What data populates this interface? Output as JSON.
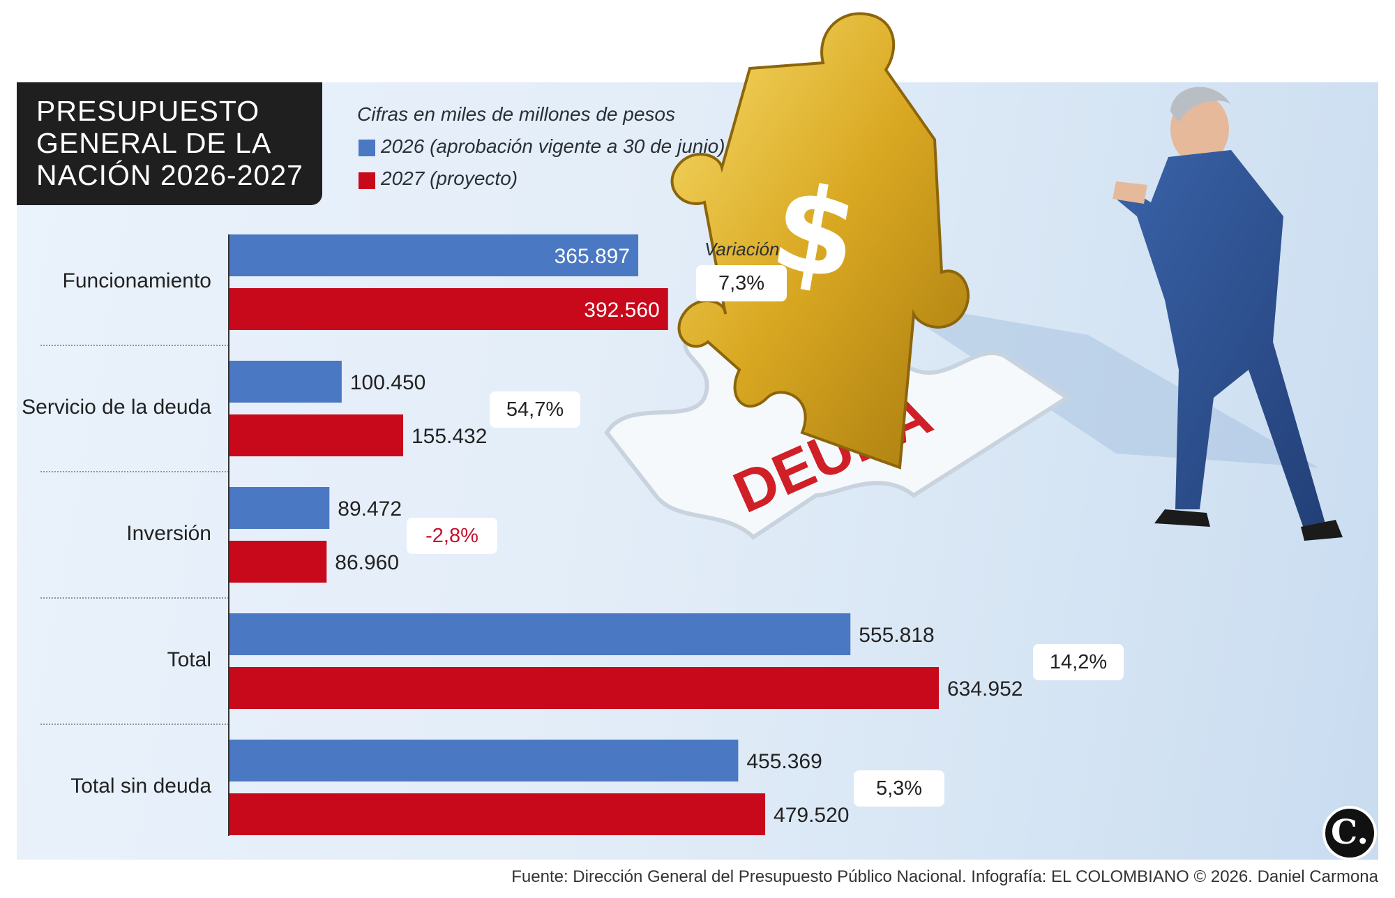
{
  "title": "PRESUPUESTO GENERAL DE LA NACIÓN 2026-2027",
  "legend": {
    "units_note": "Cifras en miles de millones de pesos",
    "items": [
      {
        "label": "2026 (aprobación vigente a 30 de junio)",
        "color": "#4a78c2"
      },
      {
        "label": "2027 (proyecto)",
        "color": "#c8081b"
      }
    ]
  },
  "variation_heading": "Variación",
  "chart_data": {
    "type": "bar",
    "orientation": "horizontal",
    "categories": [
      "Funcionamiento",
      "Servicio de la deuda",
      "Inversión",
      "Total",
      "Total sin deuda"
    ],
    "series": [
      {
        "name": "2026 (aprobación vigente a 30 de junio)",
        "color": "#4a78c2",
        "values": [
          365897,
          100450,
          89472,
          555818,
          455369
        ],
        "labels": [
          "365.897",
          "100.450",
          "89.472",
          "555.818",
          "455.369"
        ]
      },
      {
        "name": "2027 (proyecto)",
        "color": "#c8081b",
        "values": [
          392560,
          155432,
          86960,
          634952,
          479520
        ],
        "labels": [
          "392.560",
          "155.432",
          "86.960",
          "634.952",
          "479.520"
        ]
      }
    ],
    "variation": [
      "7,3%",
      "54,7%",
      "-2,8%",
      "14,2%",
      "5,3%"
    ],
    "variation_negative": [
      false,
      false,
      true,
      false,
      false
    ],
    "xlim": [
      0,
      634952
    ],
    "grid": false,
    "legend_position": "top-left"
  },
  "illustration": {
    "caption_word": "DEUDA",
    "symbol": "$"
  },
  "logo_letter": "C.",
  "source": "Fuente: Dirección General del Presupuesto Público Nacional. Infografía: EL COLOMBIANO © 2026. Daniel Carmona"
}
